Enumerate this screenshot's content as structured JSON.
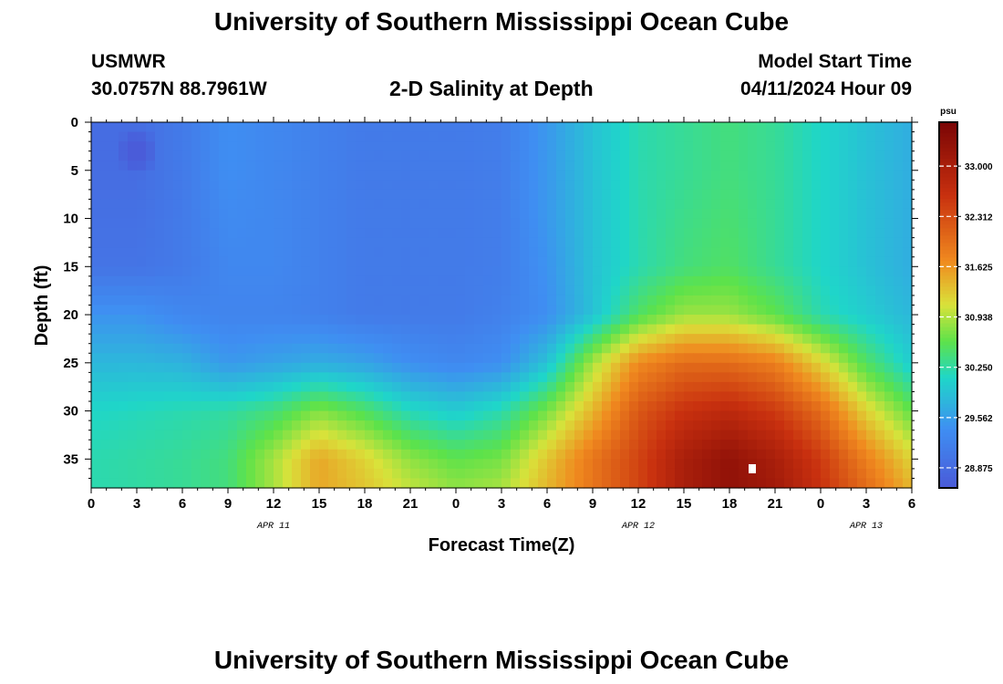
{
  "header": {
    "title": "University of Southern Mississippi Ocean Cube",
    "station": "USMWR",
    "coords": "30.0757N  88.7961W",
    "subtitle": "2-D Salinity at Depth",
    "model_label": "Model Start Time",
    "model_time": "04/11/2024 Hour 09"
  },
  "footer": {
    "title": "University of Southern Mississippi Ocean Cube"
  },
  "chart_data": {
    "type": "heatmap",
    "title": "2-D Salinity at Depth",
    "xlabel": "Forecast Time(Z)",
    "ylabel": "Depth (ft)",
    "x_ticks": [
      "0",
      "3",
      "6",
      "9",
      "12",
      "15",
      "18",
      "21",
      "0",
      "3",
      "6",
      "9",
      "12",
      "15",
      "18",
      "21",
      "0",
      "3",
      "6"
    ],
    "x_hours": [
      0,
      3,
      6,
      9,
      12,
      15,
      18,
      21,
      24,
      27,
      30,
      33,
      36,
      39,
      42,
      45,
      48,
      51,
      54
    ],
    "date_labels": [
      {
        "hour": 12,
        "label": "APR 11"
      },
      {
        "hour": 36,
        "label": "APR 12"
      },
      {
        "hour": 51,
        "label": "APR 13"
      }
    ],
    "y_ticks": [
      0,
      5,
      10,
      15,
      20,
      25,
      30,
      35
    ],
    "xlim": [
      0,
      54
    ],
    "ylim": [
      0,
      38
    ],
    "colorbar": {
      "unit": "psu",
      "min": 28.6,
      "max": 33.6,
      "ticks": [
        "33.000",
        "32.312",
        "31.625",
        "30.938",
        "30.250",
        "29.562",
        "28.875"
      ],
      "tick_values": [
        33.0,
        32.312,
        31.625,
        30.938,
        30.25,
        29.562,
        28.875
      ]
    },
    "colors": {
      "dark_blue": "#4a5ad8",
      "blue": "#3f8ef2",
      "cyan": "#1fd6c9",
      "green": "#5de24a",
      "yellow": "#d9e23a",
      "orange": "#f08a1f",
      "red": "#c8300f",
      "dark_red": "#7a0505"
    },
    "grid": false,
    "depths": [
      0,
      5,
      10,
      15,
      20,
      25,
      30,
      35,
      38
    ],
    "hours": [
      0,
      3,
      6,
      9,
      12,
      15,
      18,
      21,
      24,
      27,
      30,
      33,
      36,
      39,
      42,
      45,
      48,
      51,
      54
    ],
    "salinity": [
      [
        28.9,
        28.9,
        29.1,
        29.4,
        29.3,
        29.2,
        29.1,
        29.1,
        29.1,
        29.15,
        29.5,
        29.9,
        30.2,
        30.3,
        30.4,
        30.3,
        30.1,
        29.9,
        29.7
      ],
      [
        28.9,
        28.9,
        29.1,
        29.4,
        29.3,
        29.2,
        29.1,
        29.1,
        29.1,
        29.15,
        29.5,
        29.9,
        30.2,
        30.3,
        30.4,
        30.3,
        30.1,
        29.9,
        29.7
      ],
      [
        28.95,
        28.95,
        29.1,
        29.35,
        29.3,
        29.2,
        29.1,
        29.1,
        29.1,
        29.15,
        29.5,
        29.9,
        30.2,
        30.35,
        30.45,
        30.3,
        30.1,
        29.9,
        29.7
      ],
      [
        29.0,
        29.0,
        29.1,
        29.3,
        29.3,
        29.2,
        29.1,
        29.1,
        29.1,
        29.15,
        29.45,
        29.9,
        30.2,
        30.4,
        30.5,
        30.3,
        30.1,
        29.9,
        29.7
      ],
      [
        29.45,
        29.45,
        29.3,
        29.25,
        29.25,
        29.2,
        29.1,
        29.1,
        29.1,
        29.2,
        29.4,
        29.9,
        30.5,
        30.85,
        30.85,
        30.6,
        30.2,
        30.0,
        29.8
      ],
      [
        29.8,
        29.8,
        29.75,
        29.5,
        29.6,
        29.7,
        29.6,
        29.4,
        29.3,
        29.4,
        29.9,
        30.9,
        31.7,
        32.0,
        32.0,
        31.8,
        31.2,
        30.5,
        30.0
      ],
      [
        30.1,
        30.15,
        30.2,
        30.25,
        30.4,
        30.75,
        30.5,
        30.15,
        30.0,
        30.2,
        30.7,
        31.4,
        32.2,
        32.6,
        32.75,
        32.5,
        32.0,
        31.2,
        30.6
      ],
      [
        30.2,
        30.25,
        30.3,
        30.4,
        30.9,
        31.5,
        31.2,
        30.8,
        30.6,
        30.7,
        31.3,
        31.9,
        32.4,
        33.0,
        33.3,
        33.0,
        32.5,
        31.8,
        31.2
      ],
      [
        30.2,
        30.25,
        30.3,
        30.4,
        30.9,
        31.5,
        31.3,
        31.0,
        30.8,
        30.9,
        31.4,
        31.9,
        32.4,
        33.0,
        33.3,
        33.1,
        32.6,
        32.0,
        31.4
      ]
    ],
    "anomaly": {
      "hour": 3,
      "depth": 3,
      "value": 28.6
    }
  }
}
